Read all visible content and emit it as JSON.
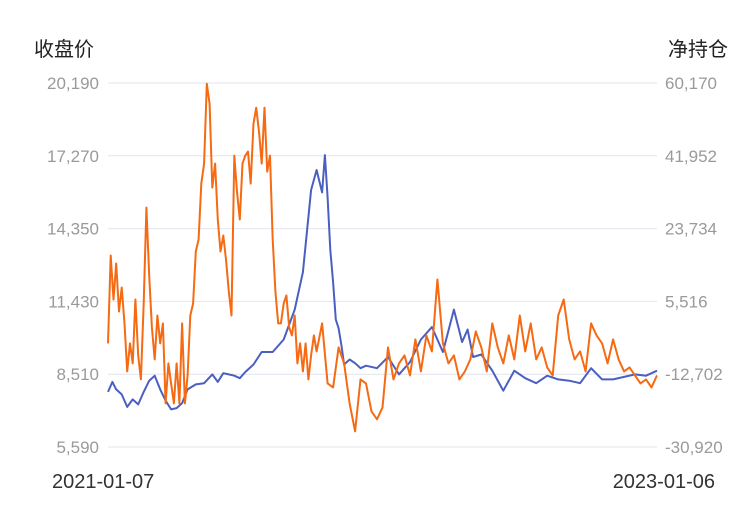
{
  "chart_data": {
    "type": "line",
    "left_axis_title": "收盘价",
    "right_axis_title": "净持仓",
    "left_ticks": [
      "20,190",
      "17,270",
      "14,350",
      "11,430",
      "8,510",
      "5,590"
    ],
    "right_ticks": [
      "60,170",
      "41,952",
      "23,734",
      "5,516",
      "-12,702",
      "-30,920"
    ],
    "x_start_label": "2021-01-07",
    "x_end_label": "2023-01-06",
    "left_ylim": [
      5590,
      20190
    ],
    "right_ylim": [
      -30920,
      60170
    ],
    "grid": true,
    "series": [
      {
        "axis": "left",
        "color": "#4a5fc1",
        "x": [
          0,
          0.008,
          0.015,
          0.025,
          0.035,
          0.045,
          0.055,
          0.065,
          0.075,
          0.085,
          0.095,
          0.105,
          0.115,
          0.125,
          0.135,
          0.145,
          0.16,
          0.175,
          0.19,
          0.2,
          0.21,
          0.22,
          0.23,
          0.24,
          0.25,
          0.265,
          0.28,
          0.3,
          0.32,
          0.34,
          0.355,
          0.37,
          0.38,
          0.39,
          0.395,
          0.4,
          0.405,
          0.41,
          0.415,
          0.42,
          0.425,
          0.43,
          0.44,
          0.45,
          0.46,
          0.47,
          0.49,
          0.51,
          0.53,
          0.55,
          0.57,
          0.59,
          0.61,
          0.63,
          0.645,
          0.655,
          0.665,
          0.68,
          0.7,
          0.72,
          0.74,
          0.76,
          0.78,
          0.8,
          0.82,
          0.84,
          0.86,
          0.88,
          0.9,
          0.92,
          0.94,
          0.96,
          0.98,
          1.0
        ],
        "values": [
          7800,
          8200,
          7900,
          7700,
          7200,
          7500,
          7300,
          7800,
          8250,
          8450,
          7900,
          7450,
          7100,
          7150,
          7350,
          7900,
          8100,
          8150,
          8500,
          8200,
          8550,
          8500,
          8450,
          8350,
          8600,
          8900,
          9400,
          9400,
          9900,
          11100,
          12600,
          15900,
          16700,
          15800,
          17300,
          15600,
          13500,
          12200,
          10700,
          10350,
          9700,
          8900,
          9100,
          8950,
          8750,
          8850,
          8750,
          9200,
          8500,
          9000,
          9900,
          10400,
          9400,
          11100,
          9800,
          10300,
          9200,
          9300,
          8650,
          7850,
          8650,
          8350,
          8150,
          8450,
          8300,
          8250,
          8150,
          8750,
          8300,
          8300,
          8400,
          8500,
          8450,
          8650
        ]
      },
      {
        "axis": "right",
        "color": "#f56a13",
        "x": [
          0,
          0.005,
          0.01,
          0.015,
          0.02,
          0.025,
          0.03,
          0.035,
          0.04,
          0.045,
          0.05,
          0.055,
          0.06,
          0.065,
          0.07,
          0.075,
          0.08,
          0.085,
          0.09,
          0.095,
          0.1,
          0.105,
          0.11,
          0.115,
          0.12,
          0.125,
          0.13,
          0.135,
          0.14,
          0.145,
          0.15,
          0.155,
          0.16,
          0.165,
          0.17,
          0.175,
          0.18,
          0.185,
          0.19,
          0.195,
          0.2,
          0.205,
          0.21,
          0.215,
          0.22,
          0.225,
          0.23,
          0.235,
          0.24,
          0.245,
          0.25,
          0.255,
          0.26,
          0.265,
          0.27,
          0.275,
          0.28,
          0.285,
          0.29,
          0.295,
          0.3,
          0.305,
          0.31,
          0.315,
          0.32,
          0.325,
          0.33,
          0.335,
          0.34,
          0.345,
          0.35,
          0.355,
          0.36,
          0.365,
          0.37,
          0.375,
          0.38,
          0.39,
          0.4,
          0.41,
          0.42,
          0.43,
          0.44,
          0.45,
          0.46,
          0.47,
          0.48,
          0.49,
          0.5,
          0.51,
          0.52,
          0.53,
          0.54,
          0.55,
          0.56,
          0.57,
          0.58,
          0.59,
          0.6,
          0.61,
          0.62,
          0.63,
          0.64,
          0.65,
          0.66,
          0.67,
          0.68,
          0.69,
          0.7,
          0.71,
          0.72,
          0.73,
          0.74,
          0.75,
          0.76,
          0.77,
          0.78,
          0.79,
          0.8,
          0.81,
          0.82,
          0.83,
          0.84,
          0.85,
          0.86,
          0.87,
          0.88,
          0.89,
          0.9,
          0.91,
          0.92,
          0.93,
          0.94,
          0.95,
          0.96,
          0.97,
          0.98,
          0.99,
          1.0
        ],
        "values": [
          -5000,
          17000,
          6000,
          15000,
          3000,
          9000,
          0,
          -12000,
          -5000,
          -10000,
          6000,
          -8000,
          -14000,
          5000,
          29000,
          12000,
          -1000,
          -9000,
          2000,
          -5000,
          0,
          -20000,
          -10000,
          -15000,
          -20000,
          -10000,
          -20000,
          0,
          -20000,
          -13000,
          2000,
          5000,
          18000,
          21000,
          35000,
          40000,
          60000,
          55000,
          34000,
          40000,
          26000,
          18000,
          22000,
          16000,
          8000,
          2000,
          42000,
          33000,
          26000,
          40000,
          42000,
          43000,
          35000,
          50000,
          54000,
          48000,
          40000,
          54000,
          38000,
          42000,
          21000,
          8000,
          0,
          0,
          5000,
          7000,
          -1000,
          -3000,
          2000,
          -10000,
          -5000,
          -12000,
          -5000,
          -14000,
          -8000,
          -3000,
          -7000,
          0,
          -15000,
          -16000,
          -6000,
          -10000,
          -20000,
          -27000,
          -14000,
          -15000,
          -22000,
          -24000,
          -21000,
          -6000,
          -14000,
          -10000,
          -8000,
          -13000,
          -4000,
          -12000,
          -3000,
          -7000,
          11000,
          -5000,
          -10000,
          -8000,
          -14000,
          -12000,
          -9000,
          -2000,
          -6000,
          -12000,
          0,
          -6000,
          -10000,
          -3000,
          -9000,
          2000,
          -7000,
          0,
          -9000,
          -6000,
          -11000,
          -13000,
          2000,
          6000,
          -4000,
          -9000,
          -7000,
          -12000,
          0,
          -3000,
          -5000,
          -10000,
          -4000,
          -9000,
          -12000,
          -11000,
          -13000,
          -15000,
          -14000,
          -16000,
          -13000
        ]
      }
    ]
  }
}
